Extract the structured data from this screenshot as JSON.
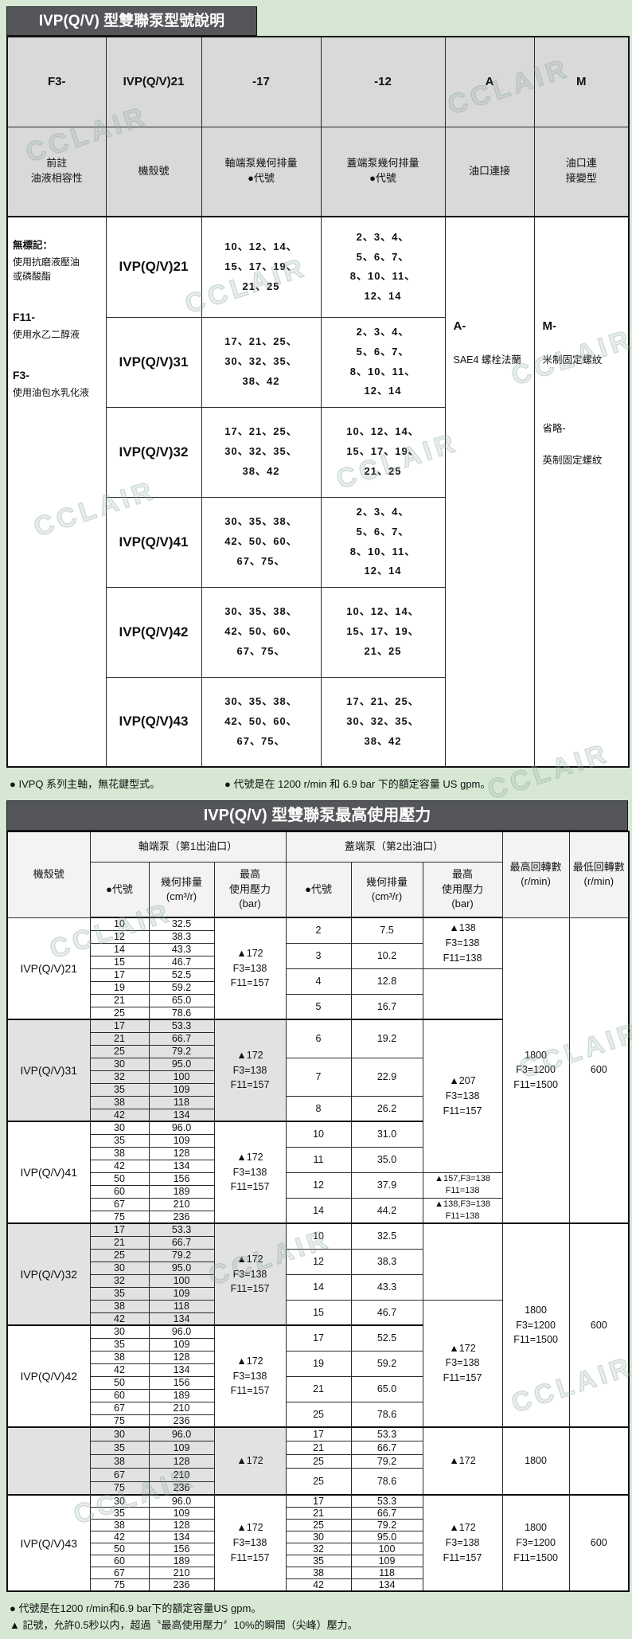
{
  "page": {
    "watermark": "CCLAIR"
  },
  "table1": {
    "title": "IVP(Q/V) 型雙聯泵型號說明",
    "codes": [
      "F3-",
      "IVP(Q/V)21",
      "-17",
      "-12",
      "A",
      "M"
    ],
    "headers": [
      "前註\n油液相容性",
      "機殼號",
      "軸端泵幾何排量\n●代號",
      "蓋端泵幾何排量\n●代號",
      "油口連接",
      "油口連\n接變型"
    ],
    "fluid": [
      {
        "head": "無標記：",
        "body": "使用抗磨液壓油\n或磷酸酯"
      },
      {
        "head": "F11-",
        "body": "使用水乙二醇液"
      },
      {
        "head": "F3-",
        "body": "使用油包水乳化液"
      }
    ],
    "port_a": {
      "head": "A-",
      "body": "SAE4 螺栓法蘭"
    },
    "port_m": {
      "head": "M-",
      "body": "米制固定螺紋",
      "head2": "省略-",
      "body2": "英制固定螺紋"
    },
    "rows": [
      {
        "housing": "IVP(Q/V)21",
        "shaft": "10、12、14、\n15、17、19、\n21、25",
        "cover": "2、3、4、\n5、6、7、\n8、10、11、\n12、14"
      },
      {
        "housing": "IVP(Q/V)31",
        "shaft": "17、21、25、\n30、32、35、\n38、42",
        "cover": "2、3、4、\n5、6、7、\n8、10、11、\n12、14"
      },
      {
        "housing": "IVP(Q/V)32",
        "shaft": "17、21、25、\n30、32、35、\n38、42",
        "cover": "10、12、14、\n15、17、19、\n21、25"
      },
      {
        "housing": "IVP(Q/V)41",
        "shaft": "30、35、38、\n42、50、60、\n67、75、",
        "cover": "2、3、4、\n5、6、7、\n8、10、11、\n12、14"
      },
      {
        "housing": "IVP(Q/V)42",
        "shaft": "30、35、38、\n42、50、60、\n67、75、",
        "cover": "10、12、14、\n15、17、19、\n21、25"
      },
      {
        "housing": "IVP(Q/V)43",
        "shaft": "30、35、38、\n42、50、60、\n67、75、",
        "cover": "17、21、25、\n30、32、35、\n38、42"
      }
    ],
    "note1": "●  IVPQ 系列主軸，無花鍵型式。",
    "note2": "●  代號是在 1200 r/min 和 6.9 bar 下的額定容量 US gpm。"
  },
  "table2": {
    "title": "IVP(Q/V) 型雙聯泵最高使用壓力",
    "headers": {
      "housing": "機殼號",
      "shaft_group": "軸端泵（第1出油口）",
      "cover_group": "蓋端泵（第2出油口）",
      "code": "●代號",
      "displacement": "幾何排量\n(cm³/r)",
      "pressure": "最高\n使用壓力\n(bar)",
      "max_speed": "最高回轉數\n(r/min)",
      "min_speed": "最低回轉數\n(r/min)"
    },
    "rows": [
      {
        "h": 16,
        "cls": "",
        "cells": [
          {
            "t": "IVP(Q/V)21",
            "rs": 8,
            "c": "lab",
            "n": "housing-label"
          },
          {
            "t": "10"
          },
          {
            "t": "32.5"
          },
          {
            "t": "▲172\nF3=138\nF11=157",
            "rs": 8,
            "c": "pr"
          },
          {
            "t": "2",
            "rs": 2
          },
          {
            "t": "7.5",
            "rs": 2
          },
          {
            "t": "▲138\nF3=138\nF11=138",
            "rs": 4,
            "c": "pr"
          },
          {
            "t": "1800\nF3=1200\nF11=1500",
            "rs": 24,
            "c": "pr"
          },
          {
            "t": "600",
            "rs": 24,
            "c": "pr"
          }
        ]
      },
      {
        "h": 16,
        "cells": [
          {
            "t": "12"
          },
          {
            "t": "38.3"
          }
        ]
      },
      {
        "h": 16,
        "cells": [
          {
            "t": "14"
          },
          {
            "t": "43.3"
          },
          {
            "t": "3",
            "rs": 2
          },
          {
            "t": "10.2",
            "rs": 2
          }
        ]
      },
      {
        "h": 16,
        "cells": [
          {
            "t": "15"
          },
          {
            "t": "46.7"
          }
        ]
      },
      {
        "h": 16,
        "cells": [
          {
            "t": "17"
          },
          {
            "t": "52.5"
          },
          {
            "t": "4",
            "rs": 2
          },
          {
            "t": "12.8",
            "rs": 2
          },
          {
            "t": "",
            "rs": 4
          }
        ]
      },
      {
        "h": 16,
        "cells": [
          {
            "t": "19"
          },
          {
            "t": "59.2"
          }
        ]
      },
      {
        "h": 16,
        "cells": [
          {
            "t": "21"
          },
          {
            "t": "65.0"
          },
          {
            "t": "5",
            "rs": 2
          },
          {
            "t": "16.7",
            "rs": 2
          }
        ]
      },
      {
        "h": 16,
        "cells": [
          {
            "t": "25"
          },
          {
            "t": "78.6"
          }
        ]
      },
      {
        "h": 16,
        "cls": "gt",
        "cells": [
          {
            "t": "IVP(Q/V)31",
            "rs": 8,
            "c": "lab sh",
            "n": "housing-label"
          },
          {
            "t": "17",
            "c": "sh"
          },
          {
            "t": "53.3",
            "c": "sh"
          },
          {
            "t": "▲172\nF3=138\nF11=157",
            "rs": 8,
            "c": "pr sh"
          },
          {
            "t": "6",
            "rs": 3
          },
          {
            "t": "19.2",
            "rs": 3
          },
          {
            "t": "▲207\nF3=138\nF11=157",
            "rs": 12,
            "c": "pr"
          }
        ]
      },
      {
        "h": 16,
        "cells": [
          {
            "t": "21",
            "c": "sh"
          },
          {
            "t": "66.7",
            "c": "sh"
          }
        ]
      },
      {
        "h": 16,
        "cells": [
          {
            "t": "25",
            "c": "sh"
          },
          {
            "t": "79.2",
            "c": "sh"
          }
        ]
      },
      {
        "h": 16,
        "cells": [
          {
            "t": "30",
            "c": "sh"
          },
          {
            "t": "95.0",
            "c": "sh"
          },
          {
            "t": "7",
            "rs": 3
          },
          {
            "t": "22.9",
            "rs": 3
          }
        ]
      },
      {
        "h": 16,
        "cells": [
          {
            "t": "32",
            "c": "sh"
          },
          {
            "t": "100",
            "c": "sh"
          }
        ]
      },
      {
        "h": 16,
        "cells": [
          {
            "t": "35",
            "c": "sh"
          },
          {
            "t": "109",
            "c": "sh"
          }
        ]
      },
      {
        "h": 16,
        "cells": [
          {
            "t": "38",
            "c": "sh"
          },
          {
            "t": "118",
            "c": "sh"
          },
          {
            "t": "8",
            "rs": 2
          },
          {
            "t": "26.2",
            "rs": 2
          }
        ]
      },
      {
        "h": 16,
        "cells": [
          {
            "t": "42",
            "c": "sh"
          },
          {
            "t": "134",
            "c": "sh"
          }
        ]
      },
      {
        "h": 16,
        "cls": "gt",
        "cells": [
          {
            "t": "IVP(Q/V)41",
            "rs": 8,
            "c": "lab",
            "n": "housing-label"
          },
          {
            "t": "30"
          },
          {
            "t": "96.0"
          },
          {
            "t": "▲172\nF3=138\nF11=157",
            "rs": 8,
            "c": "pr"
          },
          {
            "t": "10",
            "rs": 2
          },
          {
            "t": "31.0",
            "rs": 2
          }
        ]
      },
      {
        "h": 16,
        "cells": [
          {
            "t": "35"
          },
          {
            "t": "109"
          }
        ]
      },
      {
        "h": 16,
        "cells": [
          {
            "t": "38"
          },
          {
            "t": "128"
          },
          {
            "t": "11",
            "rs": 2
          },
          {
            "t": "35.0",
            "rs": 2
          }
        ]
      },
      {
        "h": 16,
        "cells": [
          {
            "t": "42"
          },
          {
            "t": "134"
          }
        ]
      },
      {
        "h": 16,
        "cells": [
          {
            "t": "50"
          },
          {
            "t": "156"
          },
          {
            "t": "12",
            "rs": 2
          },
          {
            "t": "37.9",
            "rs": 2
          },
          {
            "t": "▲157,F3=138\nF11=138",
            "rs": 2,
            "c": "pr sm"
          }
        ]
      },
      {
        "h": 16,
        "cells": [
          {
            "t": "60"
          },
          {
            "t": "189"
          }
        ]
      },
      {
        "h": 16,
        "cells": [
          {
            "t": "67"
          },
          {
            "t": "210"
          },
          {
            "t": "14",
            "rs": 2
          },
          {
            "t": "44.2",
            "rs": 2
          },
          {
            "t": "▲138,F3=138\nF11=138",
            "rs": 2,
            "c": "pr sm"
          }
        ]
      },
      {
        "h": 16,
        "cells": [
          {
            "t": "75"
          },
          {
            "t": "236"
          }
        ]
      },
      {
        "h": 16,
        "cls": "gt",
        "cells": [
          {
            "t": "IVP(Q/V)32",
            "rs": 8,
            "c": "lab sh",
            "n": "housing-label"
          },
          {
            "t": "17",
            "c": "sh"
          },
          {
            "t": "53.3",
            "c": "sh"
          },
          {
            "t": "▲172\nF3=138\nF11=157",
            "rs": 8,
            "c": "pr sh"
          },
          {
            "t": "10",
            "rs": 2
          },
          {
            "t": "32.5",
            "rs": 2
          },
          {
            "t": "",
            "rs": 6
          },
          {
            "t": "1800\nF3=1200\nF11=1500",
            "rs": 16,
            "c": "pr"
          },
          {
            "t": "600",
            "rs": 16,
            "c": "pr"
          }
        ]
      },
      {
        "h": 16,
        "cells": [
          {
            "t": "21",
            "c": "sh"
          },
          {
            "t": "66.7",
            "c": "sh"
          }
        ]
      },
      {
        "h": 16,
        "cells": [
          {
            "t": "25",
            "c": "sh"
          },
          {
            "t": "79.2",
            "c": "sh"
          },
          {
            "t": "12",
            "rs": 2
          },
          {
            "t": "38.3",
            "rs": 2
          }
        ]
      },
      {
        "h": 16,
        "cells": [
          {
            "t": "30",
            "c": "sh"
          },
          {
            "t": "95.0",
            "c": "sh"
          }
        ]
      },
      {
        "h": 16,
        "cells": [
          {
            "t": "32",
            "c": "sh"
          },
          {
            "t": "100",
            "c": "sh"
          },
          {
            "t": "14",
            "rs": 2
          },
          {
            "t": "43.3",
            "rs": 2
          }
        ]
      },
      {
        "h": 16,
        "cells": [
          {
            "t": "35",
            "c": "sh"
          },
          {
            "t": "109",
            "c": "sh"
          }
        ]
      },
      {
        "h": 16,
        "cells": [
          {
            "t": "38",
            "c": "sh"
          },
          {
            "t": "118",
            "c": "sh"
          },
          {
            "t": "15",
            "rs": 2
          },
          {
            "t": "46.7",
            "rs": 2
          },
          {
            "t": "▲172\nF3=138\nF11=157",
            "rs": 10,
            "c": "pr"
          }
        ]
      },
      {
        "h": 16,
        "cells": [
          {
            "t": "42",
            "c": "sh"
          },
          {
            "t": "134",
            "c": "sh"
          }
        ]
      },
      {
        "h": 16,
        "cls": "gt",
        "cells": [
          {
            "t": "IVP(Q/V)42",
            "rs": 8,
            "c": "lab",
            "n": "housing-label"
          },
          {
            "t": "30"
          },
          {
            "t": "96.0"
          },
          {
            "t": "▲172\nF3=138\nF11=157",
            "rs": 8,
            "c": "pr"
          },
          {
            "t": "17",
            "rs": 2
          },
          {
            "t": "52.5",
            "rs": 2
          }
        ]
      },
      {
        "h": 16,
        "cells": [
          {
            "t": "35"
          },
          {
            "t": "109"
          }
        ]
      },
      {
        "h": 16,
        "cells": [
          {
            "t": "38"
          },
          {
            "t": "128"
          },
          {
            "t": "19",
            "rs": 2
          },
          {
            "t": "59.2",
            "rs": 2
          }
        ]
      },
      {
        "h": 16,
        "cells": [
          {
            "t": "42"
          },
          {
            "t": "134"
          }
        ]
      },
      {
        "h": 16,
        "cells": [
          {
            "t": "50"
          },
          {
            "t": "156"
          },
          {
            "t": "21",
            "rs": 2
          },
          {
            "t": "65.0",
            "rs": 2
          }
        ]
      },
      {
        "h": 16,
        "cells": [
          {
            "t": "60"
          },
          {
            "t": "189"
          }
        ]
      },
      {
        "h": 16,
        "cells": [
          {
            "t": "67"
          },
          {
            "t": "210"
          },
          {
            "t": "25",
            "rs": 2
          },
          {
            "t": "78.6",
            "rs": 2
          }
        ]
      },
      {
        "h": 16,
        "cells": [
          {
            "t": "75"
          },
          {
            "t": "236"
          }
        ]
      },
      {
        "h": 17,
        "cls": "gt",
        "cells": [
          {
            "t": "",
            "rs": 5,
            "c": "lab sh",
            "n": "housing-label"
          },
          {
            "t": "30",
            "c": "sh"
          },
          {
            "t": "96.0",
            "c": "sh"
          },
          {
            "t": "▲172",
            "rs": 5,
            "c": "pr sh"
          },
          {
            "t": "17"
          },
          {
            "t": "53.3"
          },
          {
            "t": "▲172",
            "rs": 5,
            "c": "pr"
          },
          {
            "t": "1800",
            "rs": 5,
            "c": "pr"
          },
          {
            "t": "",
            "rs": 5
          }
        ]
      },
      {
        "h": 17,
        "cells": [
          {
            "t": "35",
            "c": "sh"
          },
          {
            "t": "109",
            "c": "sh"
          },
          {
            "t": "21"
          },
          {
            "t": "66.7"
          }
        ]
      },
      {
        "h": 17,
        "cells": [
          {
            "t": "38",
            "c": "sh"
          },
          {
            "t": "128",
            "c": "sh"
          },
          {
            "t": "25"
          },
          {
            "t": "79.2"
          }
        ]
      },
      {
        "h": 17,
        "cells": [
          {
            "t": "67",
            "c": "sh"
          },
          {
            "t": "210",
            "c": "sh"
          },
          {
            "t": "25",
            "rs": 2
          },
          {
            "t": "78.6",
            "rs": 2
          }
        ]
      },
      {
        "h": 17,
        "cells": [
          {
            "t": "75",
            "c": "sh"
          },
          {
            "t": "236",
            "c": "sh"
          }
        ]
      },
      {
        "h": 11,
        "cls": "gt",
        "cells": [
          {
            "t": "IVP(Q/V)43",
            "rs": 8,
            "c": "lab",
            "n": "housing-label"
          },
          {
            "t": "30"
          },
          {
            "t": "96.0"
          },
          {
            "t": "▲172\nF3=138\nF11=157",
            "rs": 8,
            "c": "pr"
          },
          {
            "t": "17"
          },
          {
            "t": "53.3"
          },
          {
            "t": "▲172\nF3=138\nF11=157",
            "rs": 8,
            "c": "pr"
          },
          {
            "t": "1800\nF3=1200\nF11=1500",
            "rs": 8,
            "c": "pr"
          },
          {
            "t": "600",
            "rs": 8,
            "c": "pr"
          }
        ]
      },
      {
        "h": 11,
        "cells": [
          {
            "t": "35"
          },
          {
            "t": "109"
          },
          {
            "t": "21"
          },
          {
            "t": "66.7"
          }
        ]
      },
      {
        "h": 11,
        "cells": [
          {
            "t": "38"
          },
          {
            "t": "128"
          },
          {
            "t": "25"
          },
          {
            "t": "79.2"
          }
        ]
      },
      {
        "h": 11,
        "cells": [
          {
            "t": "42"
          },
          {
            "t": "134"
          },
          {
            "t": "30"
          },
          {
            "t": "95.0"
          }
        ]
      },
      {
        "h": 11,
        "cells": [
          {
            "t": "50"
          },
          {
            "t": "156"
          },
          {
            "t": "32"
          },
          {
            "t": "100"
          }
        ]
      },
      {
        "h": 11,
        "cells": [
          {
            "t": "60"
          },
          {
            "t": "189"
          },
          {
            "t": "35"
          },
          {
            "t": "109"
          }
        ]
      },
      {
        "h": 11,
        "cells": [
          {
            "t": "67"
          },
          {
            "t": "210"
          },
          {
            "t": "38"
          },
          {
            "t": "118"
          }
        ]
      },
      {
        "h": 11,
        "cells": [
          {
            "t": "75"
          },
          {
            "t": "236"
          },
          {
            "t": "42"
          },
          {
            "t": "134"
          }
        ]
      }
    ],
    "footnote1": "●  代號是在1200 r/min和6.9 bar下的額定容量US gpm。",
    "footnote2": "▲  記號，允許0.5秒以内，超過〝最高使用壓力〞10%的瞬間（尖峰）壓力。"
  }
}
